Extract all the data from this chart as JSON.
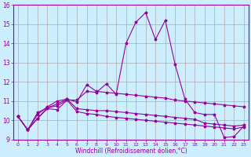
{
  "xlabel": "Windchill (Refroidissement éolien,°C)",
  "bg_color": "#cceeff",
  "line_color": "#990099",
  "grid_color": "#aaaaaa",
  "xlim": [
    -0.5,
    23.5
  ],
  "ylim": [
    9,
    16
  ],
  "yticks": [
    9,
    10,
    11,
    12,
    13,
    14,
    15,
    16
  ],
  "xticks": [
    0,
    1,
    2,
    3,
    4,
    5,
    6,
    7,
    8,
    9,
    10,
    11,
    12,
    13,
    14,
    15,
    16,
    17,
    18,
    19,
    20,
    21,
    22,
    23
  ],
  "series": [
    [
      10.2,
      9.5,
      10.1,
      10.6,
      10.55,
      11.05,
      10.45,
      10.35,
      10.3,
      10.2,
      10.15,
      10.1,
      10.05,
      10.0,
      9.95,
      9.9,
      9.85,
      9.8,
      9.75,
      9.7,
      9.65,
      9.6,
      9.55,
      9.65
    ],
    [
      10.2,
      9.5,
      10.4,
      10.65,
      10.85,
      11.1,
      10.6,
      10.55,
      10.5,
      10.5,
      10.45,
      10.4,
      10.35,
      10.3,
      10.25,
      10.2,
      10.15,
      10.1,
      10.05,
      9.85,
      9.8,
      9.75,
      9.7,
      9.75
    ],
    [
      10.2,
      9.5,
      10.3,
      10.7,
      11.0,
      11.1,
      10.95,
      11.85,
      11.5,
      11.45,
      11.4,
      11.35,
      11.3,
      11.25,
      11.2,
      11.15,
      11.05,
      11.0,
      10.95,
      10.9,
      10.85,
      10.8,
      10.75,
      10.7
    ],
    [
      10.2,
      9.5,
      10.1,
      10.65,
      10.75,
      11.05,
      11.05,
      11.5,
      11.45,
      11.9,
      11.35,
      14.0,
      15.1,
      15.6,
      14.2,
      15.2,
      12.9,
      11.1,
      10.4,
      10.3,
      10.3,
      9.1,
      9.15,
      9.7
    ]
  ]
}
